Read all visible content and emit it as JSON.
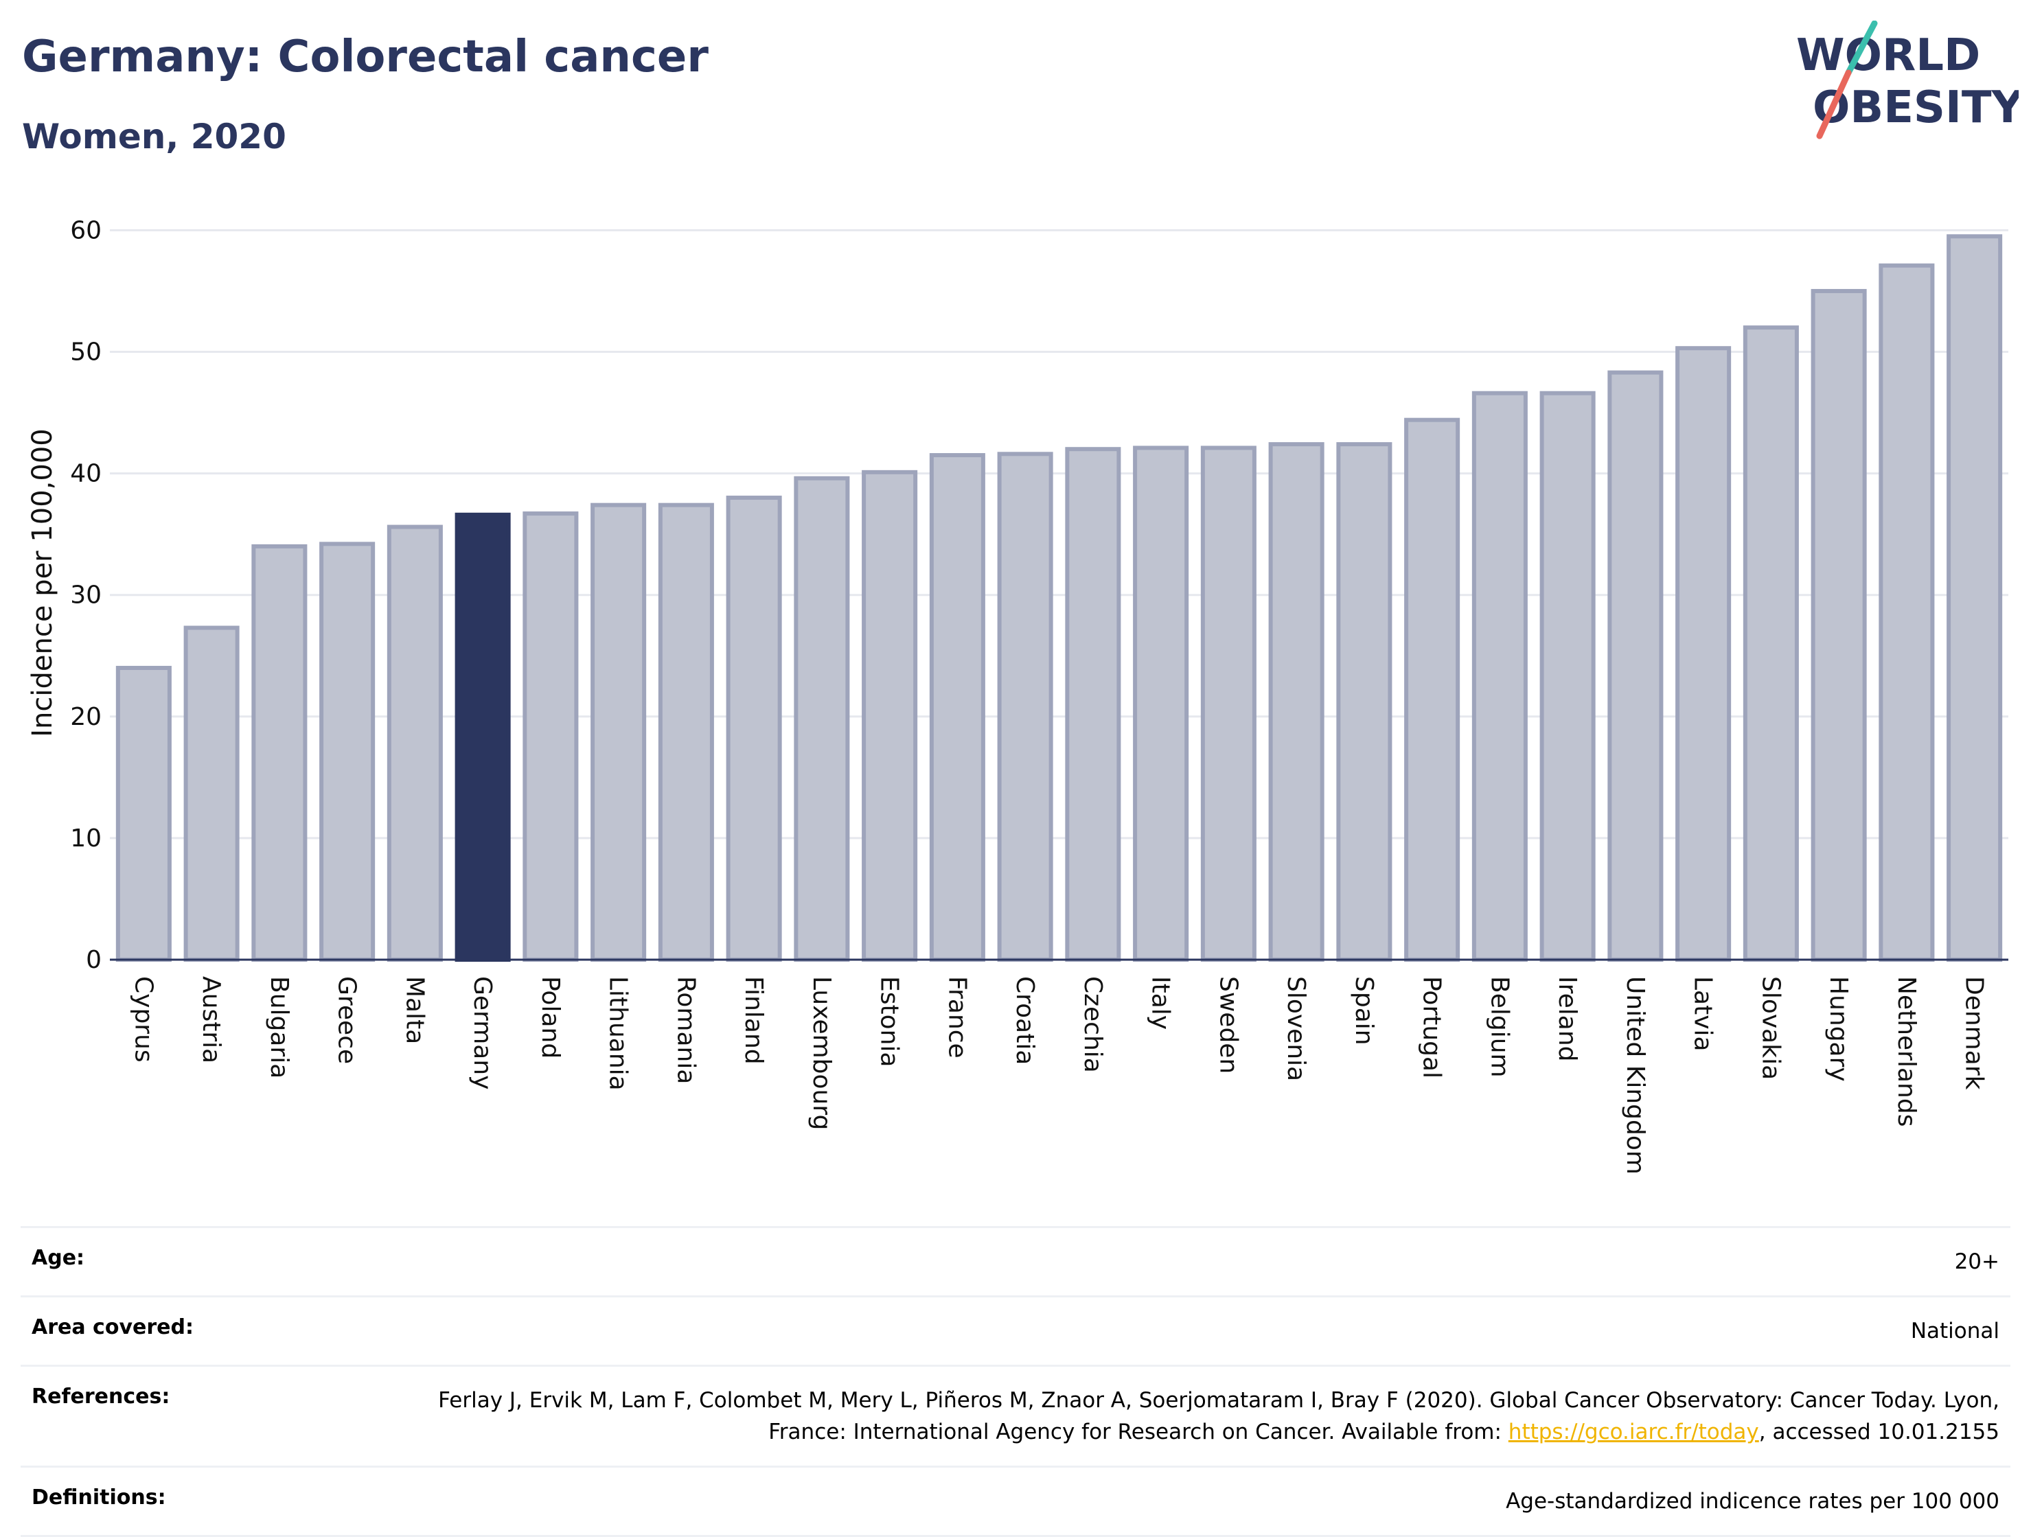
{
  "header": {
    "title": "Germany: Colorectal cancer",
    "subtitle": "Women, 2020"
  },
  "logo": {
    "line1": "WORLD",
    "line2": "OBESITY",
    "colors": {
      "text": "#2b365f",
      "slash_top": "#3bbfad",
      "slash_bottom": "#e8675c"
    }
  },
  "chart_data": {
    "type": "bar",
    "title": "",
    "xlabel": "",
    "ylabel": "Incidence per 100,000",
    "ylim": [
      0,
      62
    ],
    "yticks": [
      0,
      10,
      20,
      30,
      40,
      50,
      60
    ],
    "grid": true,
    "highlight": "Germany",
    "colors": {
      "bar": "#bfc3d0",
      "bar_edge": "#9ea4bb",
      "highlight": "#2b365f",
      "grid": "#e6e8ee",
      "axis": "#2b365f"
    },
    "categories": [
      "Cyprus",
      "Austria",
      "Bulgaria",
      "Greece",
      "Malta",
      "Germany",
      "Poland",
      "Lithuania",
      "Romania",
      "Finland",
      "Luxembourg",
      "Estonia",
      "France",
      "Croatia",
      "Czechia",
      "Italy",
      "Sweden",
      "Slovenia",
      "Spain",
      "Portugal",
      "Belgium",
      "Ireland",
      "United Kingdom",
      "Latvia",
      "Slovakia",
      "Hungary",
      "Netherlands",
      "Denmark"
    ],
    "values": [
      24.0,
      27.3,
      34.0,
      34.2,
      35.6,
      36.6,
      36.7,
      37.4,
      37.4,
      38.0,
      39.6,
      40.1,
      41.5,
      41.6,
      42.0,
      42.1,
      42.1,
      42.4,
      42.4,
      44.4,
      46.6,
      46.6,
      48.3,
      50.3,
      52.0,
      55.0,
      57.1,
      59.5
    ]
  },
  "info": {
    "age_label": "Age:",
    "age_value": "20+",
    "area_label": "Area covered:",
    "area_value": "National",
    "references_label": "References:",
    "references_text1": "Ferlay J, Ervik M, Lam F, Colombet M, Mery L, Piñeros M, Znaor A, Soerjomataram I, Bray F (2020). Global Cancer Observatory: Cancer Today. Lyon, France: International Agency for Research on Cancer. Available from: ",
    "references_link": "https://gco.iarc.fr/today",
    "references_text2": ", accessed 10.01.2155",
    "definitions_label": "Definitions:",
    "definitions_value": "Age-standardized indicence rates per 100 000"
  }
}
